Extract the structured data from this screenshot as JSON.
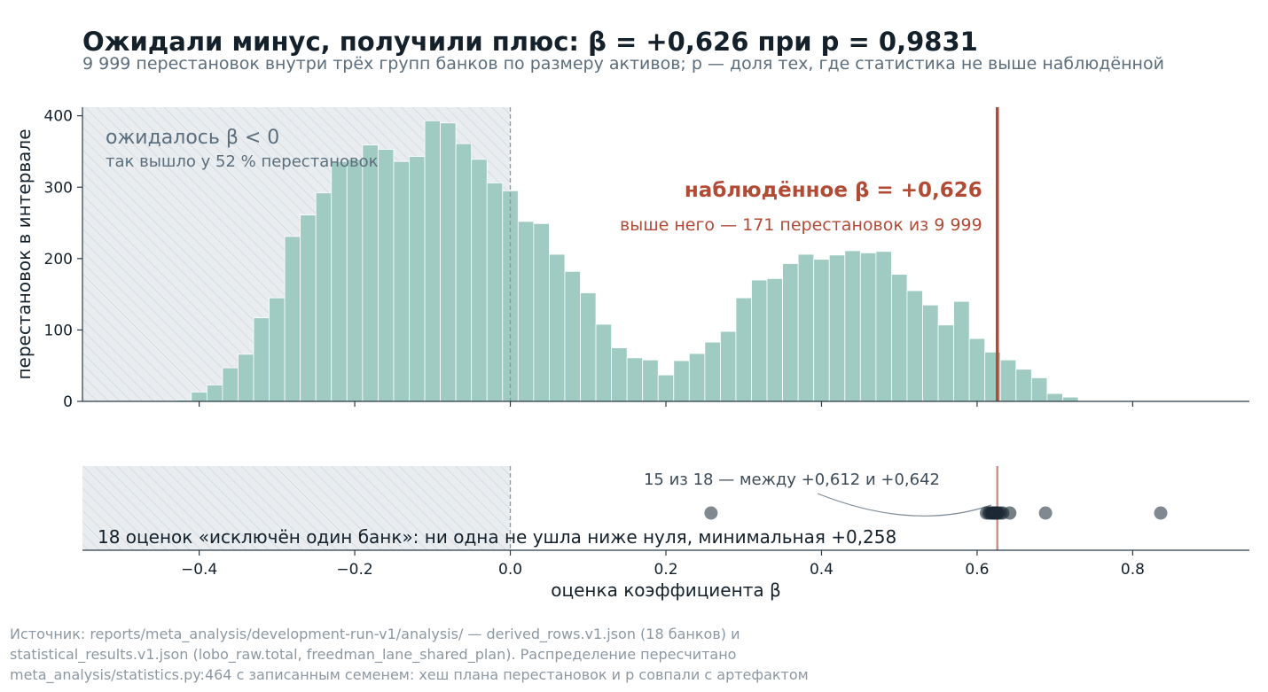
{
  "title": "Ожидали минус, получили плюс: β = +0,626 при p = 0,9831",
  "subtitle": "9 999 перестановок внутри трёх групп банков по размеру активов; p — доля тех, где статистика не выше наблюдённой",
  "source_lines": [
    "Источник: reports/meta_analysis/development-run-v1/analysis/ — derived_rows.v1.json (18 банков) и",
    "statistical_results.v1.json (lobo_raw.total, freedman_lane_shared_plan). Распределение пересчитано",
    "meta_analysis/statistics.py:464 с записанным семенем: хеш плана перестановок и p совпали с артефактом"
  ],
  "colors": {
    "bars": "#9fcbc2",
    "bar_edge": "#ffffff",
    "observed": "#b24b36",
    "expected_region": "#e9edf0",
    "hatch": "#cdd4da",
    "zero_line": "#8d98a2",
    "dots": "#808890",
    "dots_cluster": "#1d2a35",
    "axis": "#2b3a45"
  },
  "chart_data": [
    {
      "type": "bar",
      "subtype": "histogram",
      "xlabel": "оценка коэффициента β",
      "ylabel": "перестановок в интервале",
      "xlim": [
        -0.55,
        0.95
      ],
      "ylim": [
        0,
        412
      ],
      "yticks": [
        0,
        100,
        200,
        300,
        400
      ],
      "xticks": [
        -0.4,
        -0.2,
        0.0,
        0.2,
        0.4,
        0.6,
        0.8
      ],
      "xtick_labels": [
        "−0.4",
        "−0.2",
        "0.0",
        "0.2",
        "0.4",
        "0.6",
        "0.8"
      ],
      "bin_width": 0.02,
      "bin_start": -0.43,
      "values": [
        2,
        13,
        23,
        47,
        66,
        117,
        145,
        231,
        261,
        292,
        336,
        339,
        359,
        353,
        336,
        343,
        393,
        390,
        361,
        339,
        306,
        295,
        252,
        249,
        206,
        182,
        152,
        108,
        75,
        61,
        58,
        37,
        57,
        67,
        83,
        98,
        145,
        170,
        172,
        193,
        206,
        199,
        205,
        211,
        208,
        210,
        178,
        155,
        135,
        107,
        140,
        88,
        69,
        58,
        45,
        33,
        11,
        6
      ],
      "observed_beta": 0.626,
      "observed_label": "наблюдённое β = +0,626",
      "observed_note": "выше него — 171 перестановок из 9 999",
      "expected_region_to": 0.0,
      "expected_label": "ожидалось β < 0",
      "expected_note": "так вышло у 52 % перестановок",
      "grid": false
    },
    {
      "type": "scatter",
      "xlim": [
        -0.55,
        0.95
      ],
      "points": [
        0.258,
        0.612,
        0.615,
        0.617,
        0.619,
        0.62,
        0.621,
        0.622,
        0.623,
        0.624,
        0.625,
        0.626,
        0.627,
        0.63,
        0.633,
        0.642,
        0.688,
        0.836
      ],
      "cluster_note": "15 из 18 — между +0,612 и +0,642",
      "caption": "18 оценок «исключён один банк»: ни одна не ушла ниже нуля, минимальная +0,258"
    }
  ]
}
